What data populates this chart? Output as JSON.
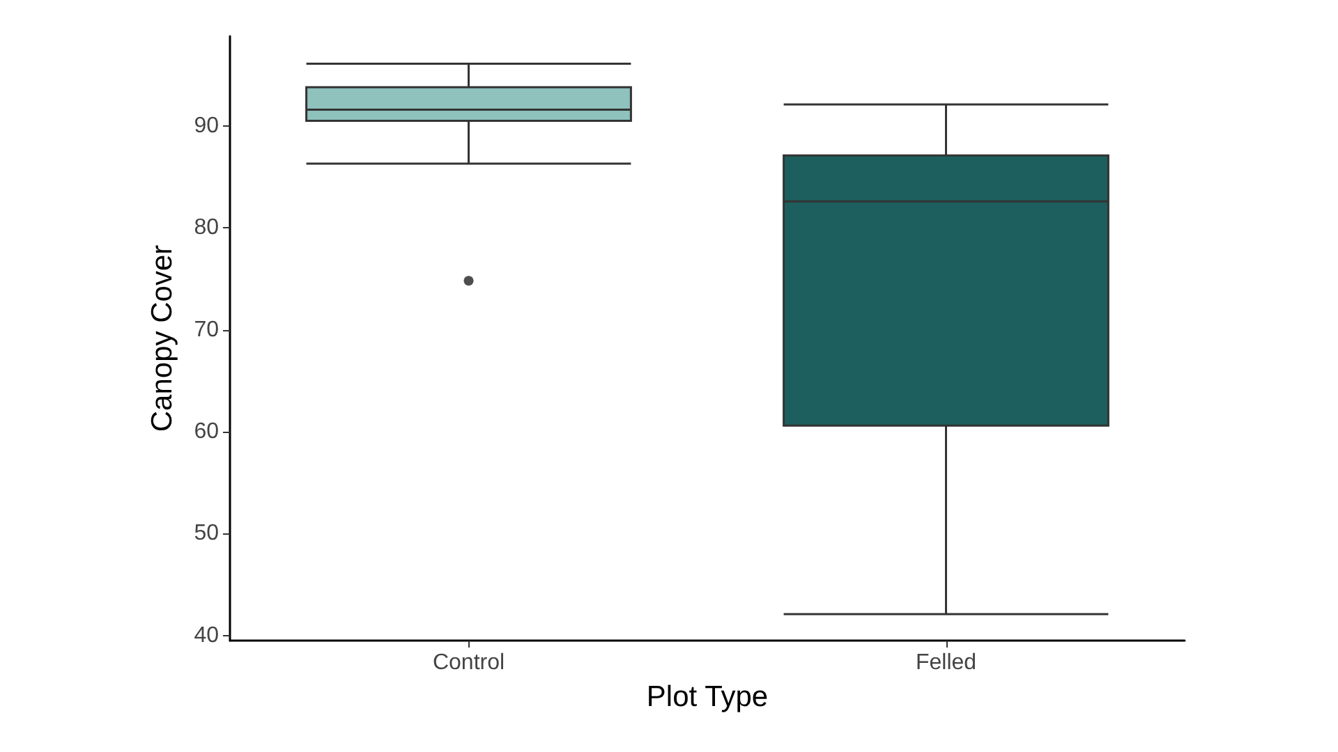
{
  "chart_data": {
    "type": "box",
    "xlabel": "Plot Type",
    "ylabel": "Canopy Cover",
    "categories": [
      "Control",
      "Felled"
    ],
    "boxes": [
      {
        "low": 86.3,
        "q1": 90.5,
        "median": 91.6,
        "q3": 93.8,
        "high": 96.1,
        "outliers": [
          74.8
        ]
      },
      {
        "low": 42.1,
        "q1": 60.6,
        "median": 82.6,
        "q3": 87.1,
        "high": 92.1
      }
    ],
    "colors": [
      "#8fc1bd",
      "#1d5e5e"
    ],
    "ylim": [
      39.5,
      98.8
    ],
    "yticks": [
      40,
      50,
      60,
      70,
      80,
      90
    ],
    "grid": false
  }
}
